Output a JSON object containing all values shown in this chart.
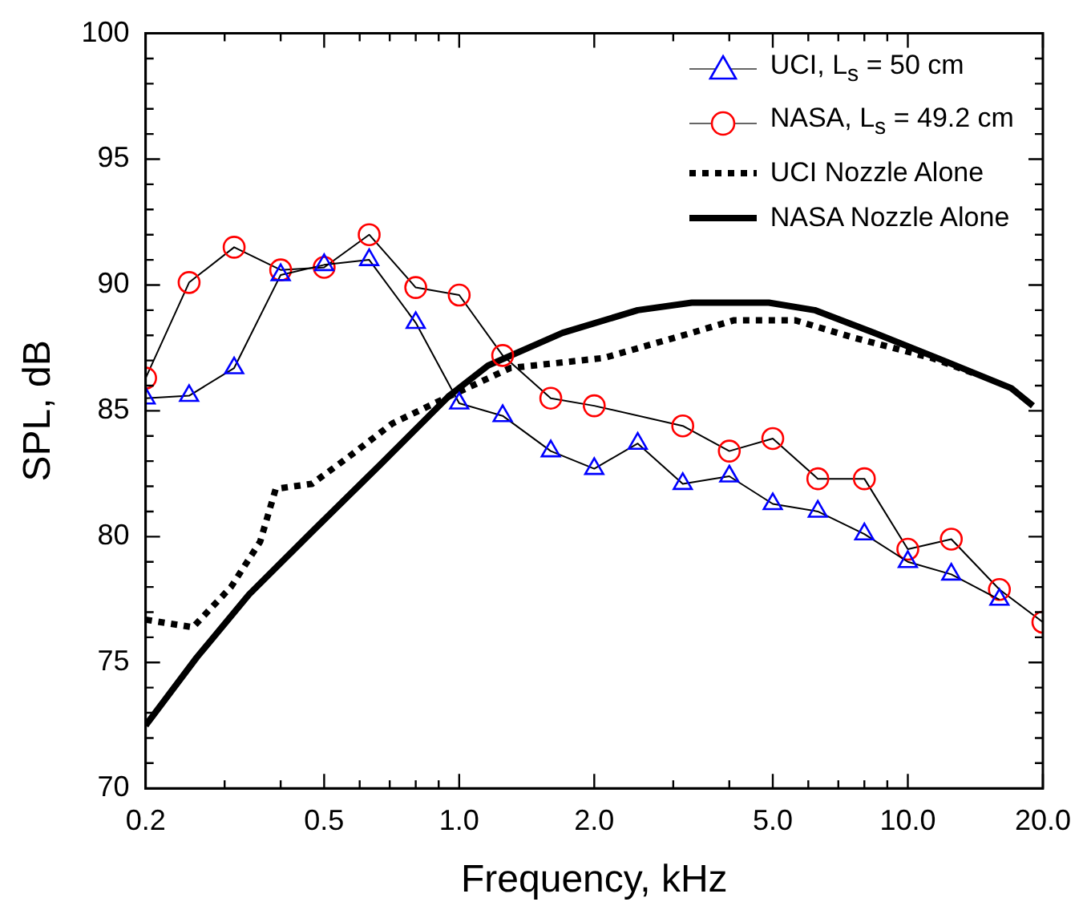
{
  "chart_data": {
    "type": "line",
    "xlabel": "Frequency, kHz",
    "ylabel": "SPL, dB",
    "log": "x",
    "xlim": [
      0.2,
      20
    ],
    "ylim": [
      70,
      100
    ],
    "xticks": [
      0.2,
      {
        "value": 0.3,
        "label": null
      },
      {
        "value": 0.4,
        "label": null
      },
      0.5,
      {
        "value": 0.6,
        "label": null
      },
      {
        "value": 0.7,
        "label": null
      },
      {
        "value": 0.8,
        "label": null
      },
      {
        "value": 0.9,
        "label": null
      },
      {
        "value": 1,
        "label": "1.0"
      },
      {
        "value": 2,
        "label": "2.0"
      },
      {
        "value": 3,
        "label": null
      },
      {
        "value": 4,
        "label": null
      },
      {
        "value": 5,
        "label": "5.0"
      },
      {
        "value": 6,
        "label": null
      },
      {
        "value": 7,
        "label": null
      },
      {
        "value": 8,
        "label": null
      },
      {
        "value": 9,
        "label": null
      },
      {
        "value": 10,
        "label": "10.0"
      },
      {
        "value": 20,
        "label": "20.0"
      }
    ],
    "yticks": [
      70,
      {
        "value": 71,
        "label": null
      },
      {
        "value": 72,
        "label": null
      },
      {
        "value": 73,
        "label": null
      },
      {
        "value": 74,
        "label": null
      },
      75,
      {
        "value": 76,
        "label": null
      },
      {
        "value": 77,
        "label": null
      },
      {
        "value": 78,
        "label": null
      },
      {
        "value": 79,
        "label": null
      },
      80,
      {
        "value": 81,
        "label": null
      },
      {
        "value": 82,
        "label": null
      },
      {
        "value": 83,
        "label": null
      },
      {
        "value": 84,
        "label": null
      },
      85,
      {
        "value": 86,
        "label": null
      },
      {
        "value": 87,
        "label": null
      },
      {
        "value": 88,
        "label": null
      },
      {
        "value": 89,
        "label": null
      },
      90,
      {
        "value": 91,
        "label": null
      },
      {
        "value": 92,
        "label": null
      },
      {
        "value": 93,
        "label": null
      },
      {
        "value": 94,
        "label": null
      },
      95,
      {
        "value": 96,
        "label": null
      },
      {
        "value": 97,
        "label": null
      },
      {
        "value": 98,
        "label": null
      },
      {
        "value": 99,
        "label": null
      },
      100
    ],
    "grid": false,
    "legend": "top right",
    "series": [
      {
        "name": "UCI, L$_{s}$ = 50 cm",
        "color": "#0000ff",
        "marker": "triangle",
        "line_style": "solid",
        "x": [
          0.2,
          0.25,
          0.315,
          0.4,
          0.5,
          0.63,
          0.8,
          1.0,
          1.25,
          1.6,
          2.0,
          2.5,
          3.15,
          4.0,
          5.0,
          6.3,
          8.0,
          10.0,
          12.5,
          16.0
        ],
        "values": [
          85.5,
          85.6,
          86.7,
          90.4,
          90.8,
          91.0,
          88.5,
          85.3,
          84.8,
          83.4,
          82.7,
          83.7,
          82.1,
          82.4,
          81.3,
          81.0,
          80.1,
          79.0,
          78.5,
          77.5
        ]
      },
      {
        "name": "NASA, L$_{s}$ = 49.2 cm",
        "color": "#ff0000",
        "marker": "circle",
        "line_style": "solid",
        "x": [
          0.2,
          0.25,
          0.315,
          0.4,
          0.5,
          0.63,
          0.8,
          1.0,
          1.25,
          1.6,
          2.0,
          3.15,
          4.0,
          5.0,
          6.3,
          8.0,
          10.0,
          12.5,
          16.0,
          20.0
        ],
        "values": [
          86.3,
          90.1,
          91.5,
          90.6,
          90.7,
          92.0,
          89.9,
          89.6,
          87.2,
          85.5,
          85.2,
          84.4,
          83.4,
          83.9,
          82.3,
          82.3,
          79.5,
          79.9,
          77.9,
          76.6
        ]
      },
      {
        "name": "UCI Nozzle Alone",
        "color": "#000000",
        "marker": "none",
        "line_style": "dotted",
        "x": [
          0.2,
          0.255,
          0.31,
          0.36,
          0.39,
          0.47,
          0.57,
          0.71,
          0.93,
          1.3,
          2.1,
          3.3,
          4.1,
          5.6,
          7.6,
          11.3,
          14
        ],
        "values": [
          76.7,
          76.4,
          78.0,
          79.8,
          81.9,
          82.1,
          83.2,
          84.5,
          85.5,
          86.7,
          87.1,
          88.1,
          88.6,
          88.6,
          87.9,
          87.1,
          86.5
        ]
      },
      {
        "name": "NASA Nozzle Alone",
        "color": "#000000",
        "marker": "none",
        "line_style": "solid",
        "x": [
          0.2,
          0.26,
          0.34,
          0.47,
          0.67,
          0.95,
          1.16,
          1.7,
          2.5,
          3.3,
          4.9,
          6.2,
          8.4,
          12,
          17,
          19
        ],
        "values": [
          72.5,
          75.2,
          77.7,
          80.2,
          82.9,
          85.6,
          86.8,
          88.1,
          89.0,
          89.3,
          89.3,
          89.0,
          88.1,
          87.0,
          85.9,
          85.2
        ]
      }
    ]
  }
}
